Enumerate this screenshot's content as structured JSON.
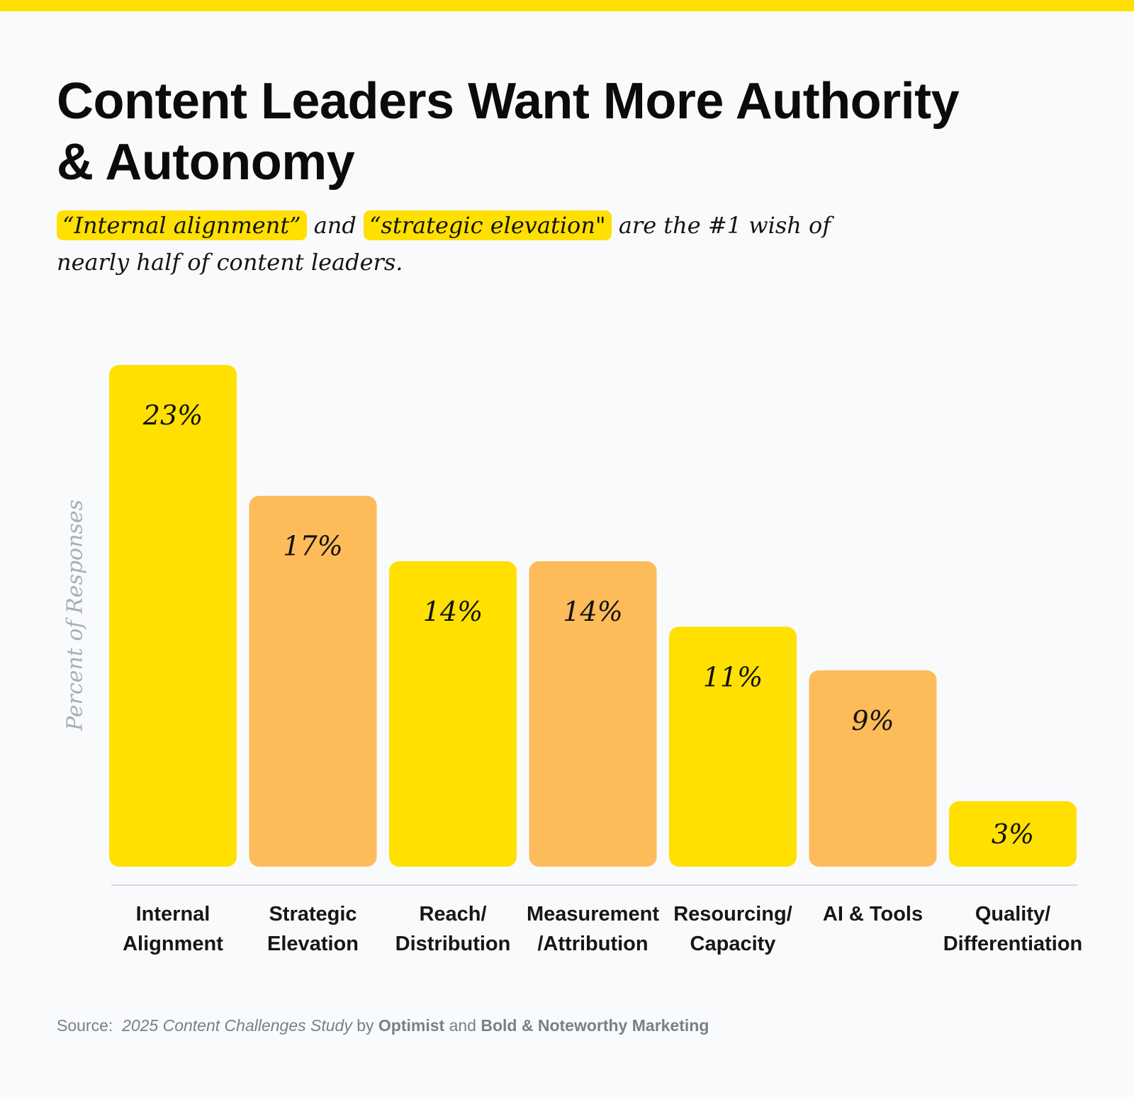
{
  "colors": {
    "yellow": "#FFE000",
    "orange": "#FDBB5A",
    "background": "#f8fafc"
  },
  "title_lines": [
    "Content Leaders Want More Authority",
    "& Autonomy"
  ],
  "subtitle": {
    "highlight1": "“Internal alignment”",
    "connector": "and",
    "highlight2": "“strategic elevation\"",
    "rest": "are the #1 wish of nearly half of content leaders."
  },
  "source": {
    "prefix": "Source:",
    "study": "2025 Content Challenges Study",
    "by": "by",
    "org1": "Optimist",
    "and": "and",
    "org2": "Bold & Noteworthy Marketing"
  },
  "chart_data": {
    "type": "bar",
    "title": "Content Leaders Want More Authority & Autonomy",
    "xlabel": "",
    "ylabel": "Percent of Responses",
    "ylim": [
      0,
      23
    ],
    "grid": false,
    "categories": [
      [
        "Internal",
        "Alignment"
      ],
      [
        "Strategic",
        "Elevation"
      ],
      [
        "Reach/",
        "Distribution"
      ],
      [
        "Measurement",
        "/Attribution"
      ],
      [
        "Resourcing/",
        "Capacity"
      ],
      [
        "AI & Tools"
      ],
      [
        "Quality/",
        "Differentiation"
      ]
    ],
    "values": [
      23,
      17,
      14,
      14,
      11,
      9,
      3
    ],
    "value_labels": [
      "23%",
      "17%",
      "14%",
      "14%",
      "11%",
      "9%",
      "3%"
    ],
    "bar_colors": [
      "#FFE000",
      "#FDBB5A",
      "#FFE000",
      "#FDBB5A",
      "#FFE000",
      "#FDBB5A",
      "#FFE000"
    ]
  }
}
